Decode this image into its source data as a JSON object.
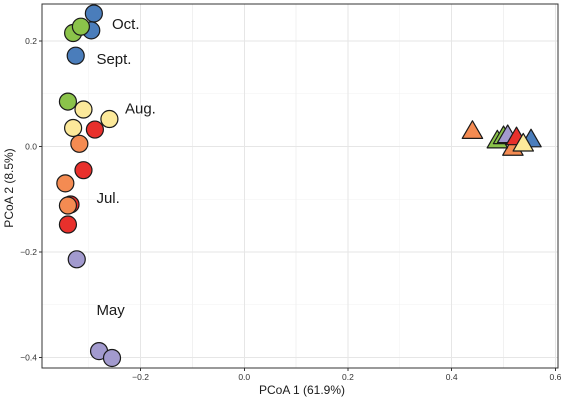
{
  "chart_data": {
    "type": "scatter",
    "title": "",
    "xlabel": "PCoA 1   (61.9%)",
    "ylabel": "PCoA 2   (8.5%)",
    "xlim": [
      -0.39,
      0.605
    ],
    "ylim": [
      -0.42,
      0.27
    ],
    "x_ticks": [
      -0.2,
      0.0,
      0.2,
      0.4,
      0.6
    ],
    "x_tick_labels": [
      "−0.2",
      "0.0",
      "0.2",
      "0.4",
      "0.6"
    ],
    "y_ticks": [
      -0.4,
      -0.2,
      0.0,
      0.2
    ],
    "y_tick_labels": [
      "−0.4",
      "−0.2",
      "0.0",
      "0.2"
    ],
    "grid": true,
    "legend": "none",
    "annotations": [
      {
        "text": "Oct.",
        "x": -0.255,
        "y": 0.232
      },
      {
        "text": "Sept.",
        "x": -0.285,
        "y": 0.166
      },
      {
        "text": "Aug.",
        "x": -0.23,
        "y": 0.072
      },
      {
        "text": "Jul.",
        "x": -0.285,
        "y": -0.098
      },
      {
        "text": "May",
        "x": -0.285,
        "y": -0.31
      }
    ],
    "series": [
      {
        "marker": "circle",
        "fill": "#4a7dbb",
        "points": [
          [
            -0.29,
            0.252
          ],
          [
            -0.295,
            0.22
          ],
          [
            -0.325,
            0.172
          ]
        ]
      },
      {
        "marker": "circle",
        "fill": "#8bc34a",
        "points": [
          [
            -0.33,
            0.215
          ],
          [
            -0.315,
            0.227
          ],
          [
            -0.34,
            0.085
          ]
        ]
      },
      {
        "marker": "circle",
        "fill": "#fce99a",
        "points": [
          [
            -0.31,
            0.07
          ],
          [
            -0.33,
            0.035
          ],
          [
            -0.26,
            0.052
          ]
        ]
      },
      {
        "marker": "circle",
        "fill": "#e8302c",
        "points": [
          [
            -0.288,
            0.032
          ],
          [
            -0.31,
            -0.045
          ],
          [
            -0.335,
            -0.11
          ],
          [
            -0.34,
            -0.148
          ]
        ]
      },
      {
        "marker": "circle",
        "fill": "#f48b52",
        "points": [
          [
            -0.318,
            0.005
          ],
          [
            -0.345,
            -0.07
          ],
          [
            -0.34,
            -0.112
          ]
        ]
      },
      {
        "marker": "circle",
        "fill": "#a29ace",
        "points": [
          [
            -0.323,
            -0.214
          ],
          [
            -0.28,
            -0.388
          ],
          [
            -0.255,
            -0.401
          ]
        ]
      },
      {
        "marker": "triangle",
        "fill": "#f48b52",
        "points": [
          [
            0.44,
            0.028
          ],
          [
            0.518,
            -0.004
          ]
        ]
      },
      {
        "marker": "triangle",
        "fill": "#8bc34a",
        "points": [
          [
            0.488,
            0.01
          ],
          [
            0.5,
            0.018
          ]
        ]
      },
      {
        "marker": "triangle",
        "fill": "#a29ace",
        "points": [
          [
            0.508,
            0.02
          ]
        ]
      },
      {
        "marker": "triangle",
        "fill": "#e8302c",
        "points": [
          [
            0.525,
            0.016
          ]
        ]
      },
      {
        "marker": "triangle",
        "fill": "#4a7dbb",
        "points": [
          [
            0.553,
            0.012
          ]
        ]
      },
      {
        "marker": "triangle",
        "fill": "#fce99a",
        "points": [
          [
            0.538,
            0.004
          ]
        ]
      }
    ]
  }
}
